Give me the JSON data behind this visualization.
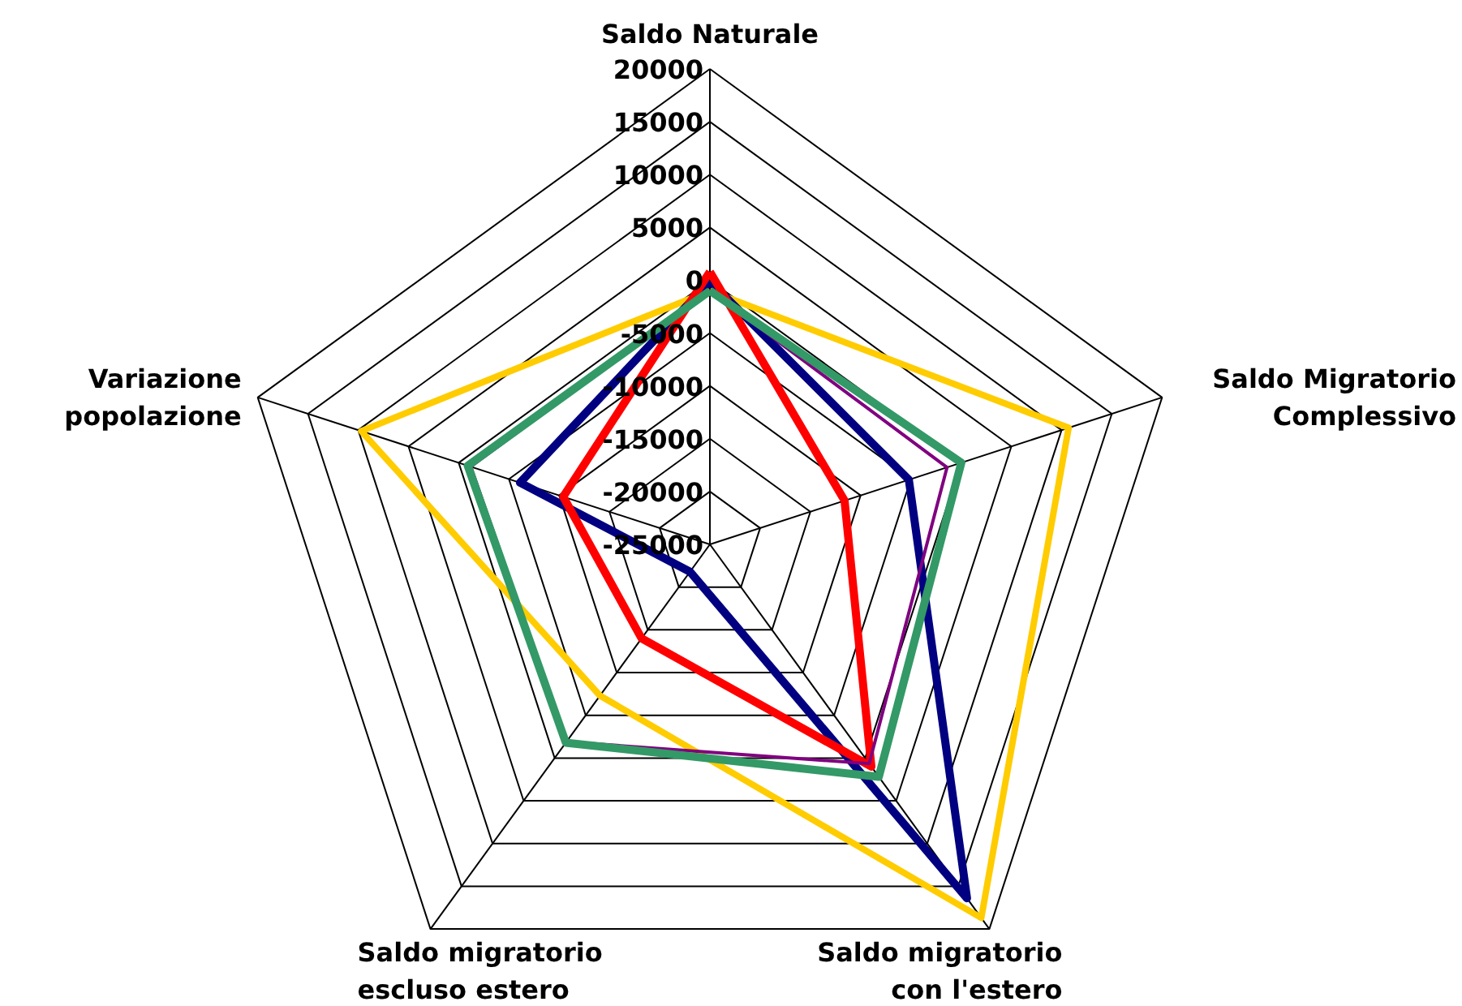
{
  "chart_data": {
    "type": "radar",
    "categories": [
      "Saldo Naturale",
      "Saldo Migratorio\nComplessivo",
      "Saldo migratorio\ncon l'estero",
      "Saldo migratorio\nescluso estero",
      "Variazione\npopolazione"
    ],
    "ylim": [
      -25000,
      20000
    ],
    "yticks": [
      -25000,
      -20000,
      -15000,
      -10000,
      -5000,
      0,
      5000,
      10000,
      15000,
      20000
    ],
    "series": [
      {
        "color": "#ffcc00",
        "values": [
          -1000,
          10700,
          18700,
          -7300,
          9700
        ]
      },
      {
        "color": "#000080",
        "values": [
          -100,
          -5200,
          16400,
          -21800,
          -6100
        ]
      },
      {
        "color": "#ff0000",
        "values": [
          800,
          -11600,
          1000,
          -14000,
          -10400
        ]
      },
      {
        "color": "#800080",
        "values": [
          -1000,
          -1400,
          650,
          -1900,
          -1200
        ]
      },
      {
        "color": "#339966",
        "values": [
          -1000,
          25,
          2200,
          -1800,
          -900
        ]
      }
    ]
  }
}
